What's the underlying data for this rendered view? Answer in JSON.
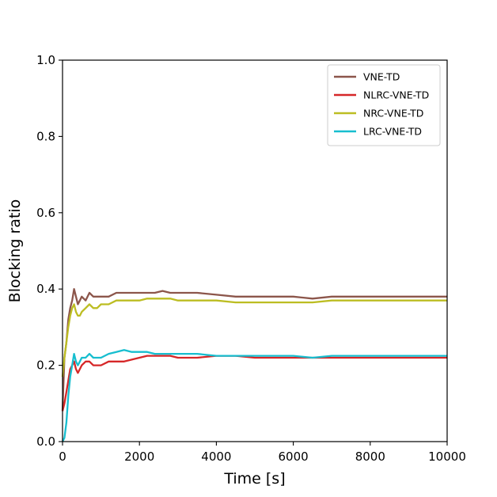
{
  "chart_data": {
    "type": "line",
    "title": "",
    "xlabel": "Time [s]",
    "ylabel": "Blocking ratio",
    "xlim": [
      0,
      10000
    ],
    "ylim": [
      0,
      1.0
    ],
    "x_ticks": [
      0,
      2000,
      4000,
      6000,
      8000,
      10000
    ],
    "x_tick_labels": [
      "0",
      "2000",
      "4000",
      "6000",
      "8000",
      "10000"
    ],
    "y_ticks": [
      0,
      0.2,
      0.4,
      0.6,
      0.8,
      1.0
    ],
    "y_tick_labels": [
      "0.0",
      "0.2",
      "0.4",
      "0.6",
      "0.8",
      "1.0"
    ],
    "grid": false,
    "legend_position": "top-right",
    "series": [
      {
        "name": "VNE-TD",
        "color": "#8c564b",
        "x": [
          0,
          50,
          100,
          150,
          200,
          250,
          300,
          350,
          400,
          450,
          500,
          600,
          700,
          800,
          900,
          1000,
          1200,
          1400,
          1600,
          1800,
          2000,
          2200,
          2400,
          2600,
          2800,
          3000,
          3200,
          3500,
          4000,
          4500,
          5000,
          5500,
          6000,
          6500,
          7000,
          7500,
          8000,
          8500,
          9000,
          9500,
          10000
        ],
        "y": [
          0.08,
          0.22,
          0.26,
          0.32,
          0.35,
          0.37,
          0.4,
          0.38,
          0.36,
          0.37,
          0.38,
          0.37,
          0.39,
          0.38,
          0.38,
          0.38,
          0.38,
          0.39,
          0.39,
          0.39,
          0.39,
          0.39,
          0.39,
          0.395,
          0.39,
          0.39,
          0.39,
          0.39,
          0.385,
          0.38,
          0.38,
          0.38,
          0.38,
          0.375,
          0.38,
          0.38,
          0.38,
          0.38,
          0.38,
          0.38,
          0.38
        ]
      },
      {
        "name": "NLRC-VNE-TD",
        "color": "#d62728",
        "x": [
          0,
          50,
          100,
          150,
          200,
          250,
          300,
          350,
          400,
          450,
          500,
          600,
          700,
          800,
          900,
          1000,
          1200,
          1400,
          1600,
          1800,
          2000,
          2200,
          2400,
          2600,
          2800,
          3000,
          3200,
          3500,
          4000,
          4500,
          5000,
          5500,
          6000,
          6500,
          7000,
          7500,
          8000,
          8500,
          9000,
          9500,
          10000
        ],
        "y": [
          0.08,
          0.1,
          0.13,
          0.16,
          0.19,
          0.2,
          0.21,
          0.19,
          0.18,
          0.19,
          0.2,
          0.21,
          0.21,
          0.2,
          0.2,
          0.2,
          0.21,
          0.21,
          0.21,
          0.215,
          0.22,
          0.225,
          0.225,
          0.225,
          0.225,
          0.22,
          0.22,
          0.22,
          0.225,
          0.225,
          0.22,
          0.22,
          0.22,
          0.22,
          0.22,
          0.22,
          0.22,
          0.22,
          0.22,
          0.22,
          0.22
        ]
      },
      {
        "name": "NRC-VNE-TD",
        "color": "#bcbd22",
        "x": [
          0,
          50,
          100,
          150,
          200,
          250,
          300,
          350,
          400,
          450,
          500,
          600,
          700,
          800,
          900,
          1000,
          1200,
          1400,
          1600,
          1800,
          2000,
          2200,
          2400,
          2600,
          2800,
          3000,
          3200,
          3500,
          4000,
          4500,
          5000,
          5500,
          6000,
          6500,
          7000,
          7500,
          8000,
          8500,
          9000,
          9500,
          10000
        ],
        "y": [
          0.17,
          0.22,
          0.26,
          0.3,
          0.33,
          0.35,
          0.36,
          0.34,
          0.33,
          0.33,
          0.34,
          0.35,
          0.36,
          0.35,
          0.35,
          0.36,
          0.36,
          0.37,
          0.37,
          0.37,
          0.37,
          0.375,
          0.375,
          0.375,
          0.375,
          0.37,
          0.37,
          0.37,
          0.37,
          0.365,
          0.365,
          0.365,
          0.365,
          0.365,
          0.37,
          0.37,
          0.37,
          0.37,
          0.37,
          0.37,
          0.37
        ]
      },
      {
        "name": "LRC-VNE-TD",
        "color": "#17becf",
        "x": [
          0,
          50,
          100,
          150,
          200,
          250,
          300,
          350,
          400,
          450,
          500,
          600,
          700,
          800,
          900,
          1000,
          1200,
          1400,
          1600,
          1800,
          2000,
          2200,
          2400,
          2600,
          2800,
          3000,
          3200,
          3500,
          4000,
          4500,
          5000,
          5500,
          6000,
          6500,
          7000,
          7500,
          8000,
          8500,
          9000,
          9500,
          10000
        ],
        "y": [
          0.0,
          0.01,
          0.05,
          0.12,
          0.17,
          0.2,
          0.23,
          0.21,
          0.2,
          0.21,
          0.22,
          0.22,
          0.23,
          0.22,
          0.22,
          0.22,
          0.23,
          0.235,
          0.24,
          0.235,
          0.235,
          0.235,
          0.23,
          0.23,
          0.23,
          0.23,
          0.23,
          0.23,
          0.225,
          0.225,
          0.225,
          0.225,
          0.225,
          0.22,
          0.225,
          0.225,
          0.225,
          0.225,
          0.225,
          0.225,
          0.225
        ]
      }
    ]
  }
}
